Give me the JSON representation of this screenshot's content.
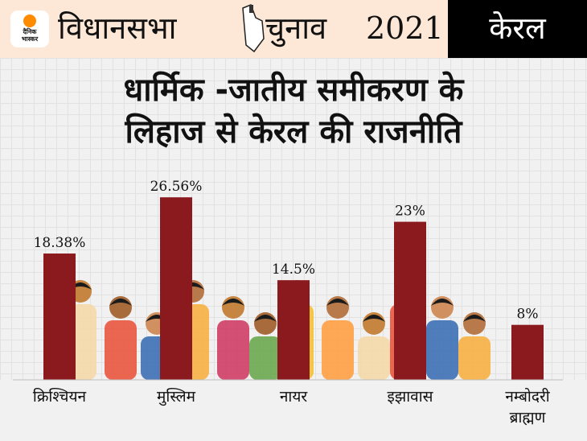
{
  "header": {
    "logo_text_1": "दैनिक",
    "logo_text_2": "भास्कर",
    "title_part1": "विधानसभा",
    "title_part2": "चुनाव",
    "year": "2021",
    "state": "केरल"
  },
  "colors": {
    "bar": "#8b1a1f",
    "header_bg": "#fde7d6",
    "state_bg": "#000000"
  },
  "chart_data": {
    "type": "bar",
    "title": "धार्मिक -जातीय समीकरण के लिहाज से केरल की राजनीति",
    "title_line1": "धार्मिक -जातीय समीकरण के",
    "title_line2": "लिहाज से केरल की राजनीति",
    "categories": [
      "क्रिश्चियन",
      "मुस्लिम",
      "नायर",
      "इझावास",
      "नम्बोदरी ब्राह्मण"
    ],
    "category_lines": [
      [
        "क्रिश्चियन"
      ],
      [
        "मुस्लिम"
      ],
      [
        "नायर"
      ],
      [
        "इझावास"
      ],
      [
        "नम्बोदरी",
        "ब्राह्मण"
      ]
    ],
    "values": [
      18.38,
      26.56,
      14.5,
      23,
      8
    ],
    "value_labels": [
      "18.38%",
      "26.56%",
      "14.5%",
      "23%",
      "8%"
    ],
    "unit": "%",
    "xlabel": "",
    "ylabel": ""
  }
}
